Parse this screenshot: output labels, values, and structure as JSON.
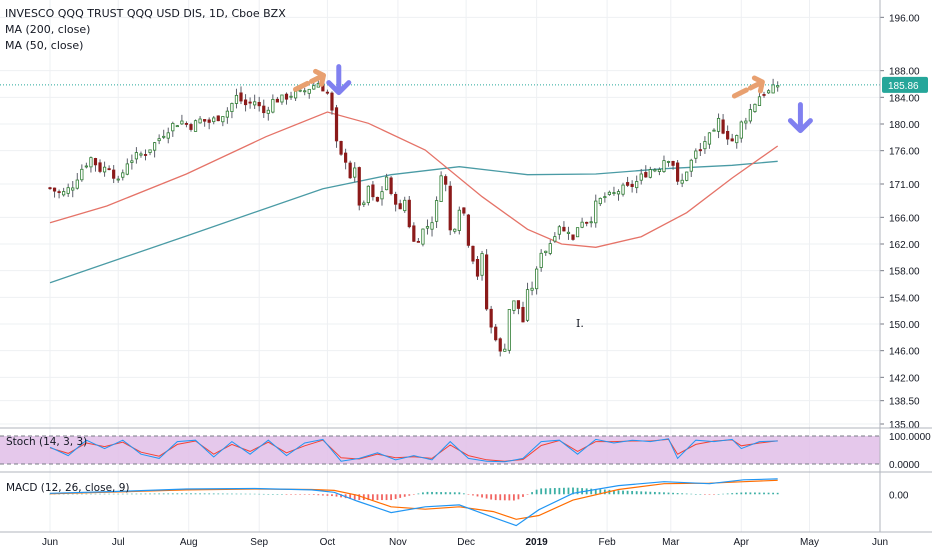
{
  "chart_data": {
    "type": "candlestick",
    "title": "INVESCO QQQ TRUST QQQ USD DIS, 1D, Cboe BZX",
    "indicators": [
      "MA (200, close)",
      "MA (50, close)"
    ],
    "y_ticks": [
      "196.00",
      "188.00",
      "184.00",
      "180.00",
      "176.00",
      "171.00",
      "166.00",
      "162.00",
      "158.00",
      "154.00",
      "150.00",
      "146.00",
      "142.00",
      "138.50",
      "135.00"
    ],
    "ylim": [
      135,
      198
    ],
    "x_ticks": [
      {
        "label": "Jun",
        "day": 0
      },
      {
        "label": "Jul",
        "day": 30
      },
      {
        "label": "Aug",
        "day": 61
      },
      {
        "label": "Sep",
        "day": 92
      },
      {
        "label": "Oct",
        "day": 122
      },
      {
        "label": "Nov",
        "day": 153
      },
      {
        "label": "Dec",
        "day": 183
      },
      {
        "label": "2019",
        "day": 214
      },
      {
        "label": "Feb",
        "day": 245
      },
      {
        "label": "Mar",
        "day": 273
      },
      {
        "label": "Apr",
        "day": 304
      },
      {
        "label": "May",
        "day": 334
      },
      {
        "label": "Jun",
        "day": 365
      }
    ],
    "last_price": "185.86",
    "close_path": [
      [
        0,
        170.4
      ],
      [
        5,
        169.4
      ],
      [
        10,
        170.8
      ],
      [
        14,
        173.3
      ],
      [
        18,
        174.9
      ],
      [
        22,
        173.2
      ],
      [
        26,
        173.6
      ],
      [
        30,
        171.2
      ],
      [
        34,
        174.3
      ],
      [
        38,
        175.2
      ],
      [
        42,
        175.7
      ],
      [
        46,
        177.1
      ],
      [
        50,
        178.6
      ],
      [
        54,
        179.9
      ],
      [
        58,
        180.4
      ],
      [
        62,
        179.7
      ],
      [
        66,
        180.6
      ],
      [
        70,
        180.3
      ],
      [
        74,
        181.0
      ],
      [
        78,
        182.0
      ],
      [
        82,
        184.1
      ],
      [
        86,
        182.9
      ],
      [
        90,
        183.4
      ],
      [
        94,
        181.7
      ],
      [
        98,
        183.5
      ],
      [
        102,
        183.8
      ],
      [
        106,
        184.4
      ],
      [
        110,
        184.6
      ],
      [
        114,
        185.4
      ],
      [
        118,
        186.2
      ],
      [
        122,
        184.6
      ],
      [
        124,
        181.8
      ],
      [
        126,
        177.0
      ],
      [
        128,
        175.1
      ],
      [
        130,
        174.7
      ],
      [
        132,
        172.2
      ],
      [
        134,
        172.9
      ],
      [
        136,
        168.1
      ],
      [
        138,
        167.6
      ],
      [
        140,
        170.6
      ],
      [
        142,
        168.7
      ],
      [
        144,
        168.3
      ],
      [
        146,
        170.0
      ],
      [
        148,
        172.1
      ],
      [
        150,
        169.1
      ],
      [
        152,
        168.5
      ],
      [
        154,
        166.9
      ],
      [
        156,
        168.6
      ],
      [
        158,
        164.9
      ],
      [
        160,
        162.3
      ],
      [
        162,
        162.9
      ],
      [
        164,
        164.1
      ],
      [
        166,
        164.7
      ],
      [
        168,
        165.6
      ],
      [
        170,
        168.1
      ],
      [
        172,
        172.8
      ],
      [
        174,
        170.8
      ],
      [
        176,
        164.0
      ],
      [
        178,
        164.8
      ],
      [
        180,
        167.6
      ],
      [
        182,
        166.6
      ],
      [
        184,
        162.3
      ],
      [
        186,
        159.9
      ],
      [
        188,
        157.4
      ],
      [
        190,
        160.1
      ],
      [
        192,
        152.3
      ],
      [
        194,
        149.4
      ],
      [
        196,
        148.1
      ],
      [
        198,
        145.6
      ],
      [
        200,
        146.7
      ],
      [
        202,
        152.3
      ],
      [
        204,
        153.2
      ],
      [
        206,
        152.4
      ],
      [
        208,
        150.4
      ],
      [
        210,
        154.6
      ],
      [
        212,
        155.6
      ],
      [
        214,
        157.8
      ],
      [
        216,
        161.0
      ],
      [
        218,
        161.1
      ],
      [
        220,
        162.2
      ],
      [
        222,
        163.7
      ],
      [
        224,
        164.9
      ],
      [
        226,
        163.8
      ],
      [
        228,
        164.2
      ],
      [
        230,
        162.5
      ],
      [
        232,
        164.7
      ],
      [
        234,
        165.6
      ],
      [
        236,
        165.5
      ],
      [
        238,
        165.9
      ],
      [
        240,
        167.9
      ],
      [
        242,
        168.6
      ],
      [
        244,
        169.1
      ],
      [
        246,
        169.2
      ],
      [
        248,
        169.5
      ],
      [
        250,
        170.0
      ],
      [
        252,
        170.3
      ],
      [
        254,
        170.4
      ],
      [
        256,
        170.8
      ],
      [
        258,
        171.3
      ],
      [
        260,
        172.1
      ],
      [
        262,
        172.6
      ],
      [
        264,
        173.2
      ],
      [
        266,
        173.3
      ],
      [
        268,
        173.6
      ],
      [
        270,
        174.7
      ],
      [
        272,
        174.9
      ],
      [
        274,
        174.0
      ],
      [
        276,
        171.0
      ],
      [
        278,
        171.4
      ],
      [
        280,
        173.1
      ],
      [
        282,
        174.4
      ],
      [
        284,
        175.7
      ],
      [
        286,
        175.9
      ],
      [
        288,
        177.5
      ],
      [
        290,
        178.1
      ],
      [
        292,
        178.5
      ],
      [
        294,
        180.5
      ],
      [
        296,
        179.1
      ],
      [
        298,
        178.2
      ],
      [
        300,
        177.5
      ],
      [
        302,
        178.0
      ],
      [
        304,
        180.1
      ],
      [
        306,
        180.9
      ],
      [
        308,
        182.1
      ],
      [
        310,
        183.2
      ],
      [
        312,
        184.2
      ],
      [
        314,
        184.7
      ],
      [
        316,
        184.8
      ],
      [
        318,
        185.3
      ],
      [
        320,
        185.86
      ]
    ],
    "ma200_path": [
      [
        0,
        156.2
      ],
      [
        60,
        163.2
      ],
      [
        120,
        170.3
      ],
      [
        150,
        172.4
      ],
      [
        180,
        173.6
      ],
      [
        210,
        172.4
      ],
      [
        240,
        172.5
      ],
      [
        270,
        173.3
      ],
      [
        300,
        173.8
      ],
      [
        320,
        174.4
      ]
    ],
    "ma50_path": [
      [
        0,
        165.2
      ],
      [
        25,
        167.7
      ],
      [
        60,
        172.5
      ],
      [
        95,
        178.1
      ],
      [
        122,
        181.8
      ],
      [
        140,
        180.1
      ],
      [
        165,
        176.1
      ],
      [
        190,
        169.1
      ],
      [
        210,
        164.2
      ],
      [
        225,
        162.0
      ],
      [
        240,
        161.5
      ],
      [
        260,
        163.1
      ],
      [
        280,
        166.7
      ],
      [
        300,
        171.9
      ],
      [
        320,
        176.7
      ]
    ],
    "arrows_up": [
      {
        "day": 115,
        "price": 185.2
      },
      {
        "day": 308,
        "price": 184.2
      }
    ],
    "arrows_down": [
      {
        "day": 127,
        "price": 186.5
      },
      {
        "day": 330,
        "price": 180.8
      }
    ],
    "stoch": {
      "label": "Stoch (14, 3, 3)",
      "ticks": [
        "100.0000",
        "0.0000"
      ],
      "k_path": [
        [
          0,
          60
        ],
        [
          8,
          30
        ],
        [
          16,
          85
        ],
        [
          24,
          55
        ],
        [
          32,
          85
        ],
        [
          40,
          35
        ],
        [
          48,
          20
        ],
        [
          56,
          80
        ],
        [
          64,
          85
        ],
        [
          72,
          25
        ],
        [
          80,
          80
        ],
        [
          88,
          35
        ],
        [
          96,
          85
        ],
        [
          104,
          30
        ],
        [
          112,
          75
        ],
        [
          120,
          88
        ],
        [
          128,
          10
        ],
        [
          136,
          20
        ],
        [
          144,
          40
        ],
        [
          152,
          15
        ],
        [
          160,
          30
        ],
        [
          168,
          15
        ],
        [
          176,
          80
        ],
        [
          184,
          20
        ],
        [
          192,
          10
        ],
        [
          200,
          8
        ],
        [
          208,
          20
        ],
        [
          216,
          80
        ],
        [
          224,
          85
        ],
        [
          232,
          35
        ],
        [
          240,
          88
        ],
        [
          248,
          75
        ],
        [
          256,
          85
        ],
        [
          264,
          80
        ],
        [
          272,
          90
        ],
        [
          276,
          20
        ],
        [
          284,
          85
        ],
        [
          292,
          80
        ],
        [
          300,
          88
        ],
        [
          304,
          55
        ],
        [
          312,
          80
        ],
        [
          320,
          82
        ]
      ],
      "d_path": [
        [
          0,
          58
        ],
        [
          8,
          38
        ],
        [
          16,
          75
        ],
        [
          24,
          62
        ],
        [
          32,
          78
        ],
        [
          40,
          42
        ],
        [
          48,
          28
        ],
        [
          56,
          70
        ],
        [
          64,
          82
        ],
        [
          72,
          35
        ],
        [
          80,
          70
        ],
        [
          88,
          45
        ],
        [
          96,
          78
        ],
        [
          104,
          40
        ],
        [
          112,
          65
        ],
        [
          120,
          85
        ],
        [
          128,
          22
        ],
        [
          136,
          18
        ],
        [
          144,
          35
        ],
        [
          152,
          22
        ],
        [
          160,
          26
        ],
        [
          168,
          20
        ],
        [
          176,
          68
        ],
        [
          184,
          30
        ],
        [
          192,
          15
        ],
        [
          200,
          10
        ],
        [
          208,
          16
        ],
        [
          216,
          66
        ],
        [
          224,
          84
        ],
        [
          232,
          45
        ],
        [
          240,
          80
        ],
        [
          248,
          80
        ],
        [
          256,
          82
        ],
        [
          264,
          82
        ],
        [
          272,
          88
        ],
        [
          276,
          35
        ],
        [
          284,
          70
        ],
        [
          292,
          82
        ],
        [
          300,
          86
        ],
        [
          304,
          65
        ],
        [
          312,
          75
        ],
        [
          320,
          83
        ]
      ]
    },
    "macd": {
      "label": "MACD (12, 26, close, 9)",
      "ticks": [
        "0.00"
      ],
      "macd_path": [
        [
          0,
          0.2
        ],
        [
          30,
          0.6
        ],
        [
          60,
          1.1
        ],
        [
          90,
          1.2
        ],
        [
          115,
          0.9
        ],
        [
          125,
          0.4
        ],
        [
          135,
          -1.4
        ],
        [
          150,
          -3.8
        ],
        [
          165,
          -2.6
        ],
        [
          180,
          -2.2
        ],
        [
          195,
          -4.8
        ],
        [
          205,
          -6.5
        ],
        [
          215,
          -3.2
        ],
        [
          230,
          0.2
        ],
        [
          250,
          1.8
        ],
        [
          270,
          2.6
        ],
        [
          290,
          2.2
        ],
        [
          305,
          3.0
        ],
        [
          320,
          3.2
        ]
      ],
      "signal_path": [
        [
          0,
          0.1
        ],
        [
          30,
          0.5
        ],
        [
          60,
          0.9
        ],
        [
          90,
          1.1
        ],
        [
          115,
          1.0
        ],
        [
          125,
          0.8
        ],
        [
          135,
          -0.2
        ],
        [
          150,
          -2.6
        ],
        [
          165,
          -3.1
        ],
        [
          180,
          -2.6
        ],
        [
          195,
          -3.6
        ],
        [
          205,
          -5.2
        ],
        [
          215,
          -4.4
        ],
        [
          230,
          -1.2
        ],
        [
          250,
          1.0
        ],
        [
          270,
          2.2
        ],
        [
          290,
          2.3
        ],
        [
          305,
          2.6
        ],
        [
          320,
          2.9
        ]
      ],
      "ylim": [
        -7,
        4
      ]
    }
  },
  "cursor_label": "I."
}
